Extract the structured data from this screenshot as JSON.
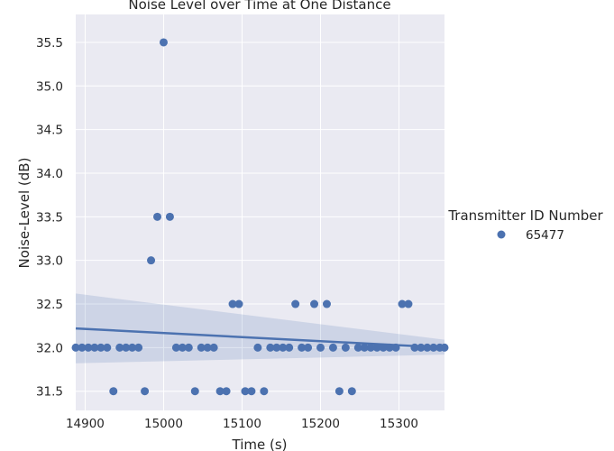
{
  "chart_data": {
    "type": "scatter",
    "title": "Noise Level over Time at One Distance",
    "xlabel": "Time (s)",
    "ylabel": "Noise-Level (dB)",
    "xlim": [
      14888,
      15358
    ],
    "ylim": [
      31.28,
      35.82
    ],
    "xticks": [
      14900,
      15000,
      15100,
      15200,
      15300
    ],
    "yticks": [
      31.5,
      32.0,
      32.5,
      33.0,
      33.5,
      34.0,
      34.5,
      35.0,
      35.5
    ],
    "grid": true,
    "legend": {
      "title": "Transmitter ID Number",
      "placement": "right"
    },
    "colors": {
      "points": "#4c72b0",
      "line": "#4c72b0",
      "band": "#4c72b0",
      "background": "#eaeaf2",
      "grid": "#ffffff"
    },
    "series": [
      {
        "name": "65477",
        "x": [
          14888,
          14896,
          14904,
          14912,
          14920,
          14928,
          14936,
          14944,
          14952,
          14960,
          14968,
          14976,
          14984,
          14992,
          15000,
          15008,
          15016,
          15024,
          15032,
          15040,
          15048,
          15056,
          15064,
          15072,
          15080,
          15088,
          15096,
          15104,
          15112,
          15120,
          15128,
          15136,
          15144,
          15152,
          15160,
          15168,
          15176,
          15184,
          15192,
          15200,
          15208,
          15216,
          15224,
          15232,
          15240,
          15248,
          15256,
          15264,
          15272,
          15280,
          15288,
          15296,
          15304,
          15312,
          15320,
          15328,
          15336,
          15344,
          15352,
          15358
        ],
        "y": [
          32.0,
          32.0,
          32.0,
          32.0,
          32.0,
          32.0,
          31.5,
          32.0,
          32.0,
          32.0,
          32.0,
          31.5,
          33.0,
          33.5,
          35.5,
          33.5,
          32.0,
          32.0,
          32.0,
          31.5,
          32.0,
          32.0,
          32.0,
          31.5,
          31.5,
          32.5,
          32.5,
          31.5,
          31.5,
          32.0,
          31.5,
          32.0,
          32.0,
          32.0,
          32.0,
          32.5,
          32.0,
          32.0,
          32.5,
          32.0,
          32.5,
          32.0,
          31.5,
          32.0,
          31.5,
          32.0,
          32.0,
          32.0,
          32.0,
          32.0,
          32.0,
          32.0,
          32.5,
          32.5,
          32.0,
          32.0,
          32.0,
          32.0,
          32.0,
          32.0
        ]
      }
    ],
    "regression": {
      "x": [
        14888,
        15358
      ],
      "y": [
        32.22,
        32.0
      ],
      "ci_lower": [
        31.82,
        31.92
      ],
      "ci_upper": [
        32.62,
        32.09
      ]
    }
  }
}
